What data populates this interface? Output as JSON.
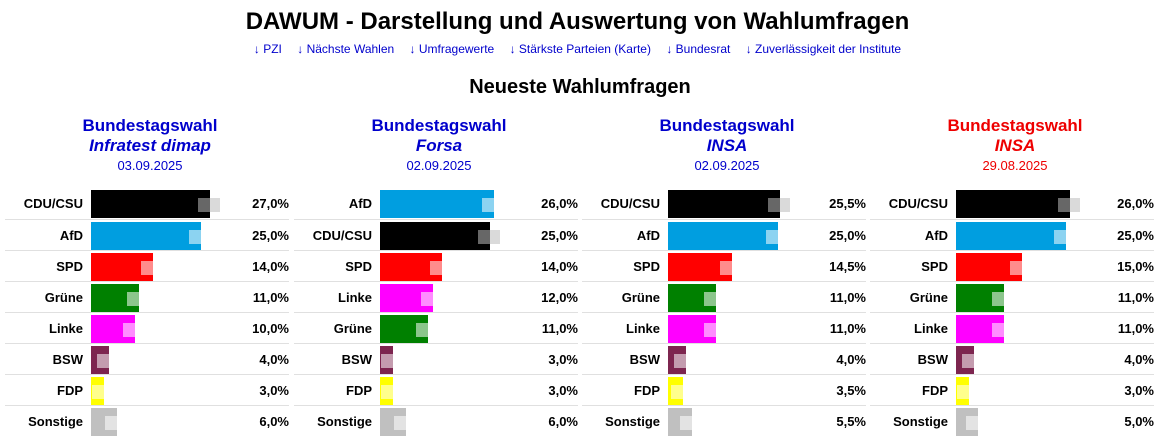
{
  "header": {
    "title": "DAWUM - Darstellung und Auswertung von Wahlumfragen",
    "nav": [
      "↓ PZI",
      "↓ Nächste Wahlen",
      "↓ Umfragewerte",
      "↓ Stärkste Parteien (Karte)",
      "↓ Bundesrat",
      "↓ Zuverlässigkeit der Institute"
    ]
  },
  "section_title": "Neueste Wahlumfragen",
  "colors": {
    "CDU/CSU": "#000000",
    "AfD": "#009ee0",
    "SPD": "#ff0000",
    "Grüne": "#008000",
    "Linke": "#ff00ff",
    "BSW": "#7d254f",
    "FDP": "#ffff00",
    "Sonstige": "#c0c0c0",
    "heading_blue": "#0000cc",
    "heading_red": "#ee0000"
  },
  "polls": [
    {
      "election": "Bundestagswahl",
      "institute": "Infratest dimap",
      "date": "03.09.2025",
      "accent": "blue",
      "results": [
        {
          "party": "CDU/CSU",
          "value": 27.0,
          "label": "27,0%"
        },
        {
          "party": "AfD",
          "value": 25.0,
          "label": "25,0%"
        },
        {
          "party": "SPD",
          "value": 14.0,
          "label": "14,0%"
        },
        {
          "party": "Grüne",
          "value": 11.0,
          "label": "11,0%"
        },
        {
          "party": "Linke",
          "value": 10.0,
          "label": "10,0%"
        },
        {
          "party": "BSW",
          "value": 4.0,
          "label": "4,0%"
        },
        {
          "party": "FDP",
          "value": 3.0,
          "label": "3,0%"
        },
        {
          "party": "Sonstige",
          "value": 6.0,
          "label": "6,0%"
        }
      ]
    },
    {
      "election": "Bundestagswahl",
      "institute": "Forsa",
      "date": "02.09.2025",
      "accent": "blue",
      "results": [
        {
          "party": "AfD",
          "value": 26.0,
          "label": "26,0%"
        },
        {
          "party": "CDU/CSU",
          "value": 25.0,
          "label": "25,0%"
        },
        {
          "party": "SPD",
          "value": 14.0,
          "label": "14,0%"
        },
        {
          "party": "Linke",
          "value": 12.0,
          "label": "12,0%"
        },
        {
          "party": "Grüne",
          "value": 11.0,
          "label": "11,0%"
        },
        {
          "party": "BSW",
          "value": 3.0,
          "label": "3,0%"
        },
        {
          "party": "FDP",
          "value": 3.0,
          "label": "3,0%"
        },
        {
          "party": "Sonstige",
          "value": 6.0,
          "label": "6,0%"
        }
      ]
    },
    {
      "election": "Bundestagswahl",
      "institute": "INSA",
      "date": "02.09.2025",
      "accent": "blue",
      "results": [
        {
          "party": "CDU/CSU",
          "value": 25.5,
          "label": "25,5%"
        },
        {
          "party": "AfD",
          "value": 25.0,
          "label": "25,0%"
        },
        {
          "party": "SPD",
          "value": 14.5,
          "label": "14,5%"
        },
        {
          "party": "Grüne",
          "value": 11.0,
          "label": "11,0%"
        },
        {
          "party": "Linke",
          "value": 11.0,
          "label": "11,0%"
        },
        {
          "party": "BSW",
          "value": 4.0,
          "label": "4,0%"
        },
        {
          "party": "FDP",
          "value": 3.5,
          "label": "3,5%"
        },
        {
          "party": "Sonstige",
          "value": 5.5,
          "label": "5,5%"
        }
      ]
    },
    {
      "election": "Bundestagswahl",
      "institute": "INSA",
      "date": "29.08.2025",
      "accent": "red",
      "results": [
        {
          "party": "CDU/CSU",
          "value": 26.0,
          "label": "26,0%"
        },
        {
          "party": "AfD",
          "value": 25.0,
          "label": "25,0%"
        },
        {
          "party": "SPD",
          "value": 15.0,
          "label": "15,0%"
        },
        {
          "party": "Grüne",
          "value": 11.0,
          "label": "11,0%"
        },
        {
          "party": "Linke",
          "value": 11.0,
          "label": "11,0%"
        },
        {
          "party": "BSW",
          "value": 4.0,
          "label": "4,0%"
        },
        {
          "party": "FDP",
          "value": 3.0,
          "label": "3,0%"
        },
        {
          "party": "Sonstige",
          "value": 5.0,
          "label": "5,0%"
        }
      ]
    }
  ]
}
